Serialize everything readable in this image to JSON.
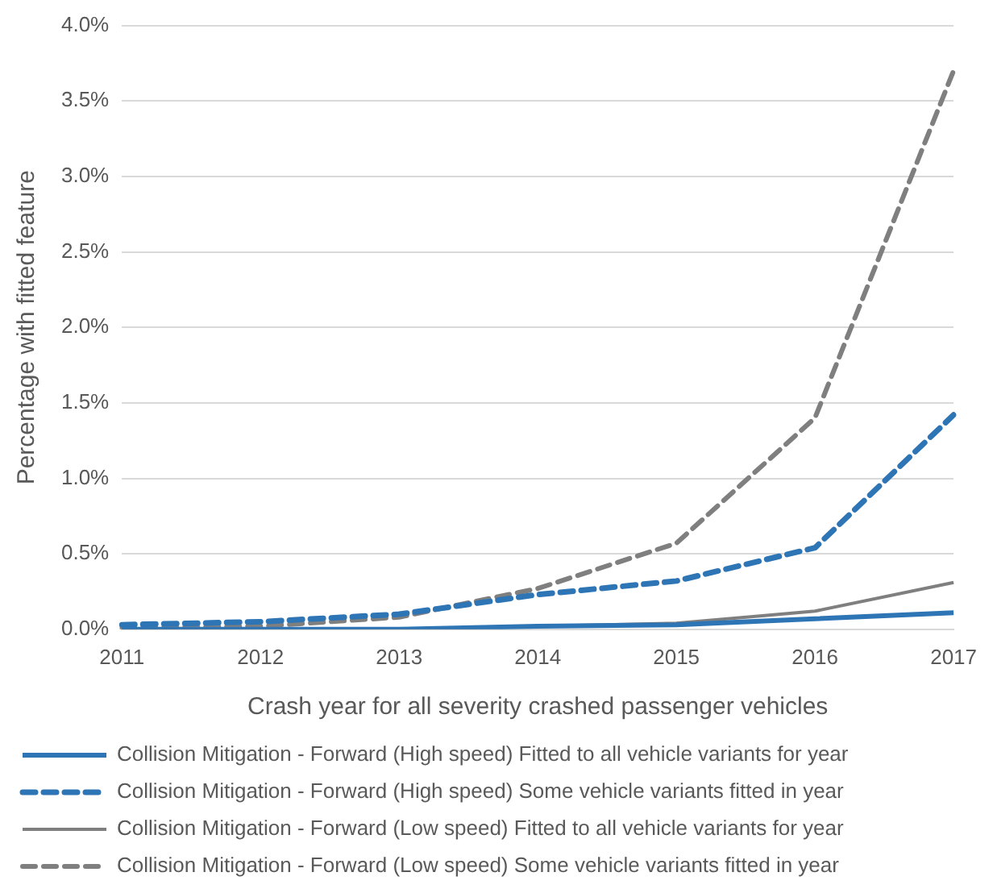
{
  "chart_data": {
    "type": "line",
    "xlabel": "Crash year for all severity crashed passenger vehicles",
    "ylabel": "Percentage with fitted feature",
    "categories": [
      "2011",
      "2012",
      "2013",
      "2014",
      "2015",
      "2016",
      "2017"
    ],
    "series": [
      {
        "name": "Collision Mitigation - Forward (High speed) Fitted to all vehicle variants for year",
        "color": "#2e75b6",
        "line_style": "solid",
        "values": [
          0.0,
          0.0,
          0.0,
          0.02,
          0.03,
          0.07,
          0.11
        ]
      },
      {
        "name": "Collision Mitigation - Forward (High speed) Some vehicle variants fitted in year",
        "color": "#2e75b6",
        "line_style": "dashed",
        "values": [
          0.03,
          0.05,
          0.1,
          0.23,
          0.32,
          0.54,
          1.42
        ]
      },
      {
        "name": "Collision Mitigation - Forward (Low speed) Fitted to all vehicle variants for year",
        "color": "#7f7f7f",
        "line_style": "solid",
        "values": [
          0.0,
          0.0,
          0.0,
          0.02,
          0.04,
          0.12,
          0.31
        ]
      },
      {
        "name": "Collision Mitigation - Forward (Low speed) Some vehicle variants fitted in year",
        "color": "#7f7f7f",
        "line_style": "dashed",
        "values": [
          0.01,
          0.02,
          0.08,
          0.27,
          0.57,
          1.4,
          3.7
        ]
      }
    ],
    "ylim": [
      0,
      4
    ],
    "yticks": [
      {
        "value": 0,
        "label": "0.0%"
      },
      {
        "value": 0.5,
        "label": "0.5%"
      },
      {
        "value": 1,
        "label": "1.0%"
      },
      {
        "value": 1.5,
        "label": "1.5%"
      },
      {
        "value": 2,
        "label": "2.0%"
      },
      {
        "value": 2.5,
        "label": "2.5%"
      },
      {
        "value": 3,
        "label": "3.0%"
      },
      {
        "value": 3.5,
        "label": "3.5%"
      },
      {
        "value": 4,
        "label": "4.0%"
      }
    ],
    "grid": "y",
    "legend": "bottom",
    "marker": "none"
  }
}
